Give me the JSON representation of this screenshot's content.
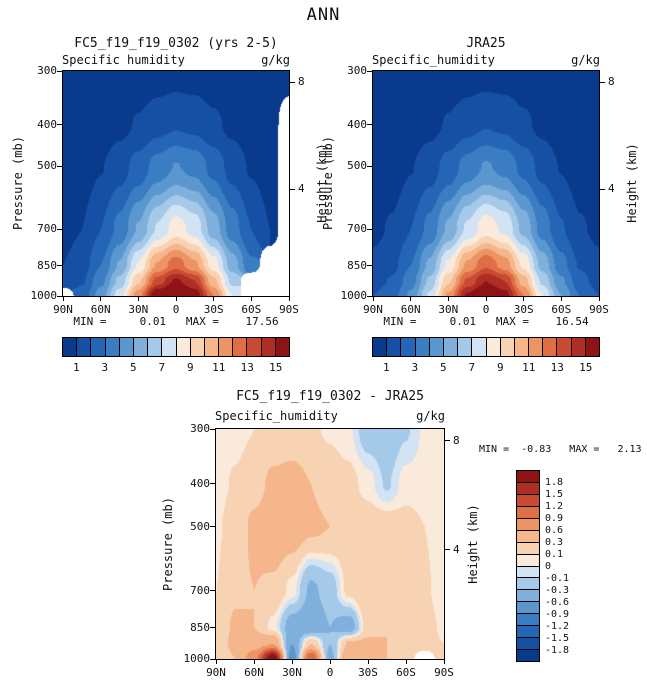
{
  "figure": {
    "title": "ANN",
    "background_color": "#ffffff"
  },
  "axes": {
    "pressure_axis_label": "Pressure (mb)",
    "height_axis_label": "Height (km)",
    "pressure_ticks": [
      300,
      400,
      500,
      700,
      850,
      1000
    ],
    "height_ticks": [
      8,
      4
    ],
    "latitude_tick_labels": [
      "90N",
      "60N",
      "30N",
      "0",
      "30S",
      "60S",
      "90S"
    ],
    "pressure_range_mb": [
      300,
      1000
    ],
    "height_scale_km": 7.0
  },
  "palette": {
    "diverging_colors": [
      "#0a3a8c",
      "#1650a5",
      "#2565b5",
      "#3a7dc2",
      "#5b97cf",
      "#7fb0dc",
      "#a5c9e8",
      "#d2e3f3",
      "#faeadc",
      "#f8d3b3",
      "#f4b68a",
      "#ec9464",
      "#df6d45",
      "#c94a32",
      "#ae2d24",
      "#8e1317"
    ],
    "missing_color": "#ffffff",
    "frame_color": "#000000"
  },
  "panels": {
    "model": {
      "title": "FC5_f19_f19_0302 (yrs 2-5)",
      "field_label": "Specific humidity",
      "units": "g/kg",
      "stats": "MIN =     0.01   MAX =    17.56"
    },
    "reference": {
      "title": "JRA25",
      "field_label": "Specific_humidity",
      "units": "g/kg",
      "stats": "MIN =     0.01   MAX =    16.54"
    },
    "difference": {
      "title": "FC5_f19_f19_0302 - JRA25",
      "field_label": "Specific_humidity",
      "units": "g/kg",
      "stats": "MIN =  -0.83   MAX =   2.13"
    }
  },
  "chart_data": [
    {
      "type": "heatmap",
      "style": "filled_contour",
      "title": "FC5_f19_f19_0302 (yrs 2-5)",
      "subtitle": "Specific humidity",
      "units": "g/kg",
      "min": 0.01,
      "max": 17.56,
      "x_axis": {
        "label": "latitude",
        "range_deg": [
          90,
          -90
        ],
        "tick_labels": [
          "90N",
          "60N",
          "30N",
          "0",
          "30S",
          "60S",
          "90S"
        ]
      },
      "y_axis": {
        "label": "Pressure (mb)",
        "type": "log-pressure",
        "range_mb": [
          300,
          1000
        ],
        "direction": "down",
        "right_axis_label": "Height (km)",
        "right_ticks_km": [
          8,
          4
        ]
      },
      "contour_levels": [
        1,
        2,
        3,
        4,
        5,
        6,
        7,
        8,
        9,
        10,
        11,
        12,
        13,
        14,
        15
      ],
      "colorbar_label_values": [
        1,
        3,
        5,
        7,
        9,
        11,
        13,
        15
      ],
      "colorbar_position": "bottom",
      "x_latitudes": [
        90,
        75,
        60,
        45,
        30,
        15,
        0,
        -15,
        -30,
        -45,
        -60,
        -75,
        -90
      ],
      "y_pressure_mb": [
        300,
        400,
        500,
        700,
        850,
        925,
        1000
      ],
      "values": [
        [
          0.05,
          0.08,
          0.12,
          0.2,
          0.32,
          0.45,
          0.55,
          0.5,
          0.35,
          0.22,
          0.12,
          0.08,
          0.05
        ],
        [
          0.12,
          0.2,
          0.4,
          0.7,
          1.1,
          1.6,
          1.9,
          1.7,
          1.2,
          0.75,
          0.4,
          0.2,
          null
        ],
        [
          0.3,
          0.5,
          0.95,
          1.6,
          2.4,
          3.4,
          4.05,
          3.7,
          2.65,
          1.6,
          0.9,
          0.5,
          null
        ],
        [
          0.7,
          1.0,
          2.0,
          3.3,
          5.1,
          7.1,
          8.5,
          7.6,
          5.5,
          3.5,
          2.0,
          1.0,
          null
        ],
        [
          1.0,
          1.5,
          3.0,
          5.1,
          8.1,
          11.1,
          12.6,
          11.2,
          8.5,
          5.5,
          3.2,
          null,
          null
        ],
        [
          1.3,
          1.9,
          3.7,
          6.3,
          9.8,
          13.4,
          15.2,
          14.0,
          10.3,
          6.7,
          null,
          null,
          null
        ],
        [
          null,
          2.4,
          4.5,
          7.6,
          11.6,
          16.2,
          17.5,
          15.8,
          12.0,
          8.0,
          null,
          null,
          null
        ]
      ]
    },
    {
      "type": "heatmap",
      "style": "filled_contour",
      "title": "JRA25",
      "subtitle": "Specific_humidity",
      "units": "g/kg",
      "min": 0.01,
      "max": 16.54,
      "x_axis": {
        "label": "latitude",
        "range_deg": [
          90,
          -90
        ],
        "tick_labels": [
          "90N",
          "60N",
          "30N",
          "0",
          "30S",
          "60S",
          "90S"
        ]
      },
      "y_axis": {
        "label": "Pressure (mb)",
        "type": "log-pressure",
        "range_mb": [
          300,
          1000
        ],
        "direction": "down",
        "right_axis_label": "Height (km)",
        "right_ticks_km": [
          8,
          4
        ]
      },
      "contour_levels": [
        1,
        2,
        3,
        4,
        5,
        6,
        7,
        8,
        9,
        10,
        11,
        12,
        13,
        14,
        15
      ],
      "colorbar_label_values": [
        1,
        3,
        5,
        7,
        9,
        11,
        13,
        15
      ],
      "colorbar_position": "bottom",
      "x_latitudes": [
        90,
        75,
        60,
        45,
        30,
        15,
        0,
        -15,
        -30,
        -45,
        -60,
        -75,
        -90
      ],
      "y_pressure_mb": [
        300,
        400,
        500,
        700,
        850,
        925,
        1000
      ],
      "values": [
        [
          0.05,
          0.08,
          0.12,
          0.2,
          0.32,
          0.45,
          0.55,
          0.5,
          0.36,
          0.22,
          0.12,
          0.08,
          0.05
        ],
        [
          0.12,
          0.2,
          0.4,
          0.7,
          1.1,
          1.6,
          1.95,
          1.75,
          1.2,
          0.75,
          0.4,
          0.2,
          0.12
        ],
        [
          0.3,
          0.5,
          0.95,
          1.55,
          2.4,
          3.4,
          4.1,
          3.7,
          2.7,
          1.65,
          0.95,
          0.5,
          0.3
        ],
        [
          0.8,
          1.1,
          2.0,
          3.3,
          5.2,
          7.2,
          8.6,
          7.8,
          5.7,
          3.6,
          2.1,
          1.1,
          0.8
        ],
        [
          1.2,
          1.7,
          3.0,
          5.2,
          8.2,
          11.2,
          12.8,
          11.5,
          8.8,
          5.6,
          3.4,
          1.9,
          1.2
        ],
        [
          1.6,
          2.1,
          3.6,
          6.2,
          9.8,
          13.2,
          15.0,
          14.0,
          10.5,
          6.8,
          4.2,
          2.4,
          1.6
        ],
        [
          2.0,
          2.6,
          4.2,
          7.2,
          11.2,
          15.2,
          16.5,
          15.5,
          12.0,
          8.0,
          5.0,
          3.0,
          2.0
        ]
      ]
    },
    {
      "type": "heatmap",
      "style": "filled_contour_difference",
      "title": "FC5_f19_f19_0302 - JRA25",
      "subtitle": "Specific_humidity",
      "units": "g/kg",
      "min": -0.83,
      "max": 2.13,
      "x_axis": {
        "label": "latitude",
        "range_deg": [
          90,
          -90
        ],
        "tick_labels": [
          "90N",
          "60N",
          "30N",
          "0",
          "30S",
          "60S",
          "90S"
        ]
      },
      "y_axis": {
        "label": "Pressure (mb)",
        "type": "log-pressure",
        "range_mb": [
          300,
          1000
        ],
        "direction": "down",
        "right_axis_label": "Height (km)",
        "right_ticks_km": [
          8,
          4
        ]
      },
      "contour_levels": [
        -1.8,
        -1.5,
        -1.2,
        -0.9,
        -0.6,
        -0.3,
        -0.1,
        0,
        0.1,
        0.3,
        0.6,
        0.9,
        1.2,
        1.5,
        1.8
      ],
      "colorbar_label_values": [
        1.8,
        1.5,
        1.2,
        0.9,
        0.6,
        0.3,
        0.1,
        0,
        -0.1,
        -0.3,
        -0.6,
        -0.9,
        -1.2,
        -1.5,
        -1.8
      ],
      "colorbar_position": "right",
      "x_latitudes": [
        90,
        75,
        60,
        45,
        30,
        15,
        0,
        -15,
        -30,
        -45,
        -60,
        -75,
        -90
      ],
      "y_pressure_mb": [
        300,
        400,
        500,
        700,
        850,
        925,
        1000
      ],
      "values": [
        [
          0.02,
          0.05,
          0.1,
          0.15,
          0.15,
          0.12,
          0.08,
          0.02,
          -0.2,
          -0.25,
          -0.12,
          0.02,
          0.02
        ],
        [
          0.05,
          0.12,
          0.22,
          0.35,
          0.4,
          0.3,
          0.2,
          0.15,
          0.05,
          -0.12,
          0.05,
          0.05,
          0.02
        ],
        [
          0.08,
          0.18,
          0.35,
          0.5,
          0.45,
          0.35,
          0.3,
          0.25,
          0.2,
          0.2,
          0.15,
          0.1,
          0.05
        ],
        [
          0.1,
          0.25,
          0.3,
          0.25,
          0.05,
          -0.35,
          -0.2,
          0.15,
          0.3,
          0.25,
          0.2,
          0.12,
          0.05
        ],
        [
          0.12,
          0.35,
          0.3,
          0.05,
          -0.45,
          -0.55,
          -0.3,
          -0.45,
          0.2,
          0.3,
          0.25,
          0.15,
          0.08
        ],
        [
          0.1,
          0.4,
          0.45,
          0.6,
          -0.6,
          0.3,
          -0.3,
          0.35,
          0.35,
          0.3,
          0.2,
          0.15,
          0.1
        ],
        [
          0.12,
          0.3,
          0.8,
          2.1,
          -0.8,
          1.2,
          -0.4,
          0.6,
          0.4,
          0.3,
          0.25,
          null,
          0.15
        ]
      ]
    }
  ]
}
